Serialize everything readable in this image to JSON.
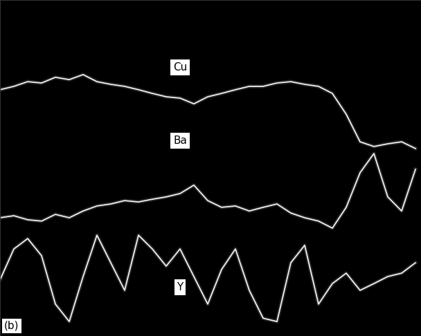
{
  "chart_data": {
    "type": "line",
    "x": [
      0,
      20,
      40,
      60,
      80,
      100,
      120,
      140,
      160,
      180,
      200,
      220,
      240,
      260,
      280,
      300,
      320,
      340,
      360,
      380,
      400,
      420,
      440,
      460,
      480,
      500,
      520,
      540,
      560,
      580,
      600
    ],
    "series": [
      {
        "name": "Cu",
        "color": "#f2f2f2",
        "values": [
          73.3,
          74.3,
          75.7,
          75.3,
          77.0,
          76.3,
          77.8,
          75.7,
          74.9,
          74.3,
          73.3,
          72.2,
          71.2,
          70.8,
          69.1,
          71.2,
          72.2,
          73.3,
          74.3,
          74.3,
          75.3,
          75.7,
          74.9,
          74.3,
          72.2,
          66.0,
          57.8,
          56.4,
          57.2,
          57.8,
          55.8
        ]
      },
      {
        "name": "Ba",
        "color": "#f2f2f2",
        "values": [
          35.2,
          35.8,
          34.6,
          34.2,
          36.2,
          35.2,
          37.2,
          38.7,
          39.3,
          40.3,
          39.9,
          40.7,
          41.4,
          42.4,
          44.9,
          40.3,
          38.3,
          38.7,
          37.2,
          38.3,
          39.3,
          36.6,
          35.2,
          34.2,
          32.1,
          38.3,
          48.6,
          54.3,
          41.4,
          37.2,
          49.6
        ]
      },
      {
        "name": "Y",
        "color": "#f2f2f2",
        "values": [
          16.7,
          25.9,
          29.0,
          23.9,
          9.5,
          4.3,
          17.7,
          30.0,
          21.8,
          13.6,
          30.0,
          25.9,
          20.8,
          25.9,
          17.7,
          9.5,
          19.8,
          25.9,
          13.6,
          5.3,
          4.3,
          21.8,
          27.0,
          9.5,
          15.6,
          18.7,
          13.6,
          15.6,
          17.7,
          18.7,
          21.8
        ]
      }
    ],
    "xlim": [
      0,
      608
    ],
    "ylim": [
      0,
      100
    ],
    "tick_labels": false,
    "grid": false,
    "annotations": [
      "(b)"
    ]
  }
}
